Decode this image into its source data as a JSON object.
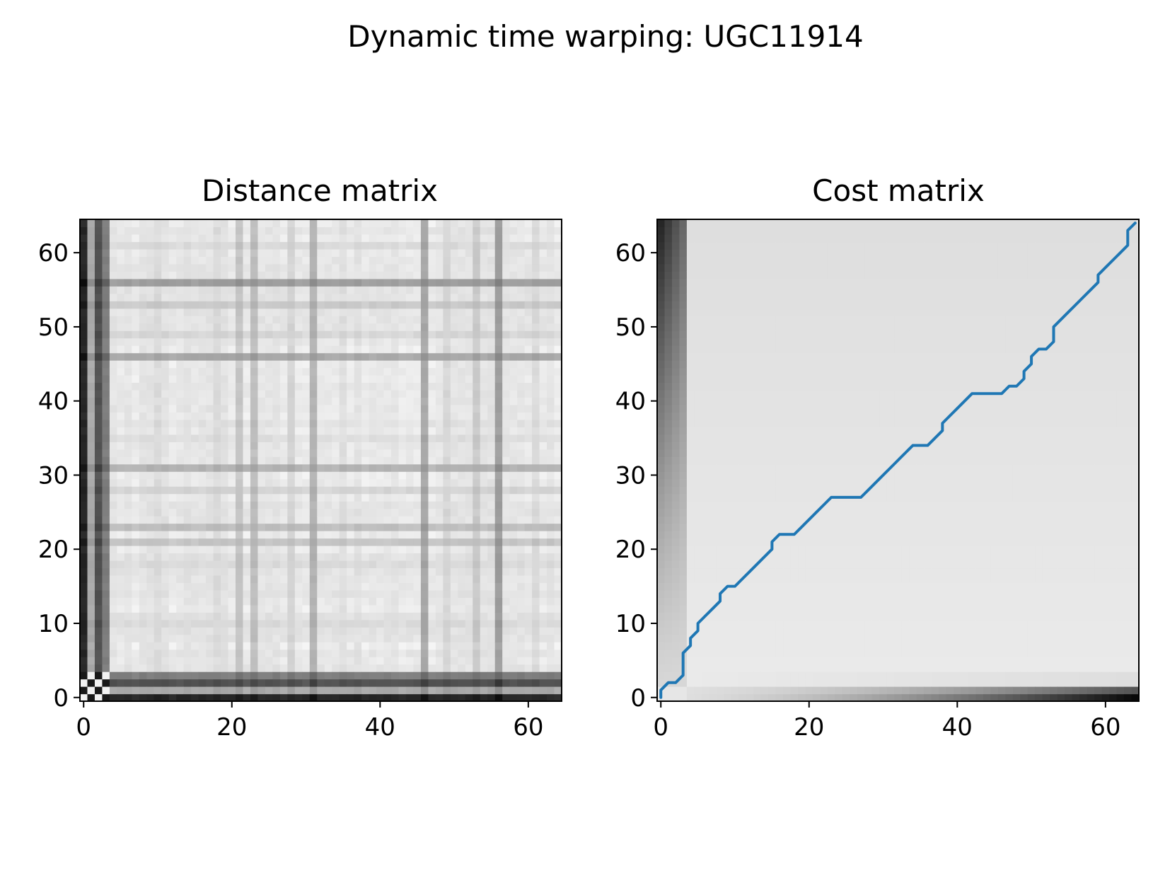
{
  "figure": {
    "title": "Dynamic time warping: UGC11914"
  },
  "chart_data": [
    {
      "type": "heatmap",
      "title": "Distance matrix",
      "xlabel": "",
      "ylabel": "",
      "n": 65,
      "xlim": [
        -0.5,
        64.5
      ],
      "ylim": [
        -0.5,
        64.5
      ],
      "origin": "lower",
      "colormap": "gray_r",
      "xticks": [
        0,
        20,
        40,
        60
      ],
      "yticks": [
        0,
        10,
        20,
        30,
        40,
        50,
        60
      ],
      "xtick_labels": [
        "0",
        "20",
        "40",
        "60"
      ],
      "ytick_labels": [
        "0",
        "10",
        "20",
        "30",
        "40",
        "50",
        "60"
      ],
      "grid": false,
      "profile_strength": {
        "strong_indices": [
          0,
          1,
          2,
          3,
          46,
          31,
          56
        ],
        "description": "pairwise distance between two 65-sample series; dark bands at rows/cols of outlier samples"
      }
    },
    {
      "type": "heatmap",
      "title": "Cost matrix",
      "xlabel": "",
      "ylabel": "",
      "n": 65,
      "xlim": [
        -0.5,
        64.5
      ],
      "ylim": [
        -0.5,
        64.5
      ],
      "origin": "lower",
      "colormap": "gray_r",
      "xticks": [
        0,
        20,
        40,
        60
      ],
      "yticks": [
        0,
        10,
        20,
        30,
        40,
        50,
        60
      ],
      "xtick_labels": [
        "0",
        "20",
        "40",
        "60"
      ],
      "ytick_labels": [
        "0",
        "10",
        "20",
        "30",
        "40",
        "50",
        "60"
      ],
      "grid": false,
      "warping_path": {
        "color": "#1f77b4",
        "points": [
          [
            0,
            0
          ],
          [
            0,
            1
          ],
          [
            1,
            2
          ],
          [
            2,
            2
          ],
          [
            3,
            3
          ],
          [
            3,
            4
          ],
          [
            3,
            5
          ],
          [
            3,
            6
          ],
          [
            4,
            7
          ],
          [
            4,
            8
          ],
          [
            5,
            9
          ],
          [
            5,
            10
          ],
          [
            6,
            11
          ],
          [
            7,
            12
          ],
          [
            8,
            13
          ],
          [
            8,
            14
          ],
          [
            9,
            15
          ],
          [
            10,
            15
          ],
          [
            11,
            16
          ],
          [
            12,
            17
          ],
          [
            13,
            18
          ],
          [
            14,
            19
          ],
          [
            15,
            20
          ],
          [
            15,
            21
          ],
          [
            16,
            22
          ],
          [
            17,
            22
          ],
          [
            18,
            22
          ],
          [
            19,
            23
          ],
          [
            20,
            24
          ],
          [
            21,
            25
          ],
          [
            22,
            26
          ],
          [
            23,
            27
          ],
          [
            24,
            27
          ],
          [
            25,
            27
          ],
          [
            26,
            27
          ],
          [
            27,
            27
          ],
          [
            28,
            28
          ],
          [
            29,
            29
          ],
          [
            30,
            30
          ],
          [
            31,
            31
          ],
          [
            32,
            32
          ],
          [
            33,
            33
          ],
          [
            34,
            34
          ],
          [
            35,
            34
          ],
          [
            36,
            34
          ],
          [
            37,
            35
          ],
          [
            38,
            36
          ],
          [
            38,
            37
          ],
          [
            39,
            38
          ],
          [
            40,
            39
          ],
          [
            41,
            40
          ],
          [
            42,
            41
          ],
          [
            43,
            41
          ],
          [
            44,
            41
          ],
          [
            45,
            41
          ],
          [
            46,
            41
          ],
          [
            47,
            42
          ],
          [
            48,
            42
          ],
          [
            49,
            43
          ],
          [
            49,
            44
          ],
          [
            50,
            45
          ],
          [
            50,
            46
          ],
          [
            51,
            47
          ],
          [
            52,
            47
          ],
          [
            53,
            48
          ],
          [
            53,
            49
          ],
          [
            53,
            50
          ],
          [
            54,
            51
          ],
          [
            55,
            52
          ],
          [
            56,
            53
          ],
          [
            57,
            54
          ],
          [
            58,
            55
          ],
          [
            59,
            56
          ],
          [
            59,
            57
          ],
          [
            60,
            58
          ],
          [
            61,
            59
          ],
          [
            62,
            60
          ],
          [
            63,
            61
          ],
          [
            63,
            62
          ],
          [
            63,
            63
          ],
          [
            64,
            64
          ]
        ]
      }
    }
  ]
}
